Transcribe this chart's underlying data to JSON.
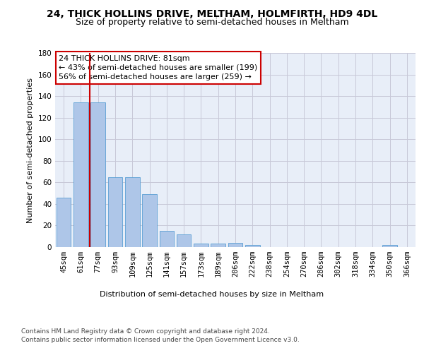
{
  "title": "24, THICK HOLLINS DRIVE, MELTHAM, HOLMFIRTH, HD9 4DL",
  "subtitle": "Size of property relative to semi-detached houses in Meltham",
  "xlabel": "Distribution of semi-detached houses by size in Meltham",
  "ylabel": "Number of semi-detached properties",
  "categories": [
    "45sqm",
    "61sqm",
    "77sqm",
    "93sqm",
    "109sqm",
    "125sqm",
    "141sqm",
    "157sqm",
    "173sqm",
    "189sqm",
    "206sqm",
    "222sqm",
    "238sqm",
    "254sqm",
    "270sqm",
    "286sqm",
    "302sqm",
    "318sqm",
    "334sqm",
    "350sqm",
    "366sqm"
  ],
  "values": [
    46,
    134,
    134,
    65,
    65,
    49,
    15,
    12,
    3,
    3,
    4,
    2,
    0,
    0,
    0,
    0,
    0,
    0,
    0,
    2,
    0
  ],
  "bar_color": "#aec6e8",
  "bar_edgecolor": "#5a9fd4",
  "red_line_color": "#cc0000",
  "ylim": [
    0,
    180
  ],
  "yticks": [
    0,
    20,
    40,
    60,
    80,
    100,
    120,
    140,
    160,
    180
  ],
  "annotation_text": "24 THICK HOLLINS DRIVE: 81sqm\n← 43% of semi-detached houses are smaller (199)\n56% of semi-detached houses are larger (259) →",
  "annotation_box_color": "#ffffff",
  "annotation_box_edgecolor": "#cc0000",
  "footer_line1": "Contains HM Land Registry data © Crown copyright and database right 2024.",
  "footer_line2": "Contains public sector information licensed under the Open Government Licence v3.0.",
  "background_color": "#e8eef8",
  "grid_color": "#c8c8d8",
  "title_fontsize": 10,
  "subtitle_fontsize": 9,
  "axis_label_fontsize": 8,
  "tick_fontsize": 7.5,
  "annotation_fontsize": 8,
  "footer_fontsize": 6.5
}
